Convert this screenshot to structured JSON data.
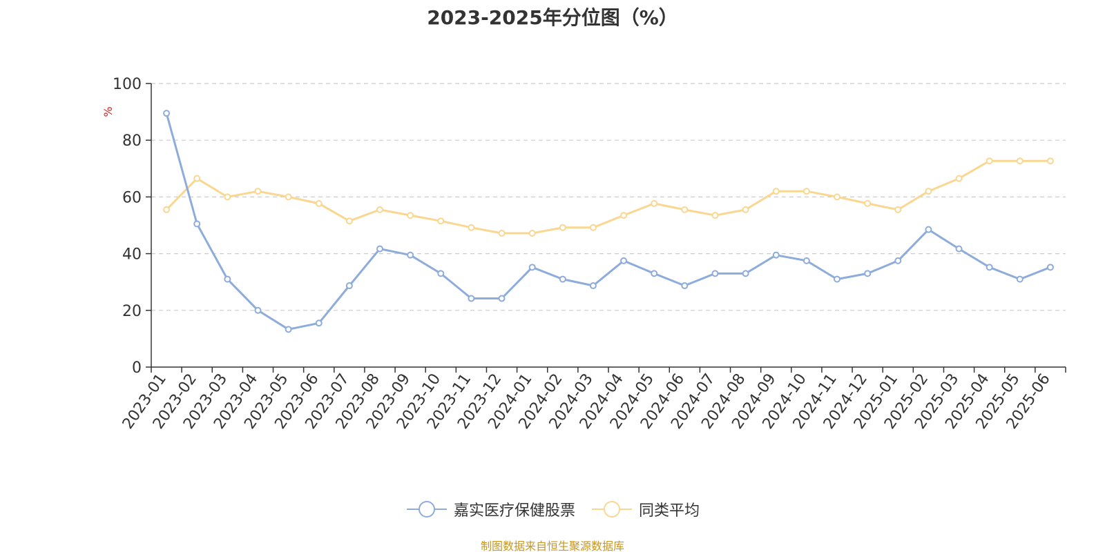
{
  "title": "2023-2025年分位图（%）",
  "source_note": "制图数据来自恒生聚源数据库",
  "chart_data": {
    "type": "line",
    "title": "2023-2025年分位图（%）",
    "ylabel": "%",
    "xlabel": "",
    "ylim": [
      0,
      100
    ],
    "yticks": [
      0,
      20,
      40,
      60,
      80,
      100
    ],
    "grid": true,
    "legend_position": "bottom",
    "categories": [
      "2023-01",
      "2023-02",
      "2023-03",
      "2023-04",
      "2023-05",
      "2023-06",
      "2023-07",
      "2023-08",
      "2023-09",
      "2023-10",
      "2023-11",
      "2023-12",
      "2024-01",
      "2024-02",
      "2024-03",
      "2024-04",
      "2024-05",
      "2024-06",
      "2024-07",
      "2024-08",
      "2024-09",
      "2024-10",
      "2024-11",
      "2024-12",
      "2025-01",
      "2025-02",
      "2025-03",
      "2025-04",
      "2025-05",
      "2025-06"
    ],
    "series": [
      {
        "name": "嘉实医疗保健股票",
        "color": "#8eacdb",
        "values": [
          89.5,
          50.5,
          31,
          20,
          13.3,
          15.5,
          28.7,
          41.7,
          39.5,
          33,
          24.2,
          24.2,
          35.2,
          31,
          28.7,
          37.5,
          33,
          28.7,
          33,
          33,
          39.5,
          37.5,
          31,
          33,
          37.5,
          48.5,
          41.7,
          35.2,
          31,
          35.2
        ]
      },
      {
        "name": "同类平均",
        "color": "#fad791",
        "values": [
          55.5,
          66.5,
          60,
          62,
          60,
          57.7,
          51.5,
          55.5,
          53.5,
          51.5,
          49.2,
          47.2,
          47.2,
          49.2,
          49.2,
          53.5,
          57.7,
          55.5,
          53.5,
          55.5,
          62,
          62,
          60,
          57.7,
          55.5,
          62,
          66.5,
          72.7,
          72.7,
          72.7
        ]
      }
    ]
  }
}
